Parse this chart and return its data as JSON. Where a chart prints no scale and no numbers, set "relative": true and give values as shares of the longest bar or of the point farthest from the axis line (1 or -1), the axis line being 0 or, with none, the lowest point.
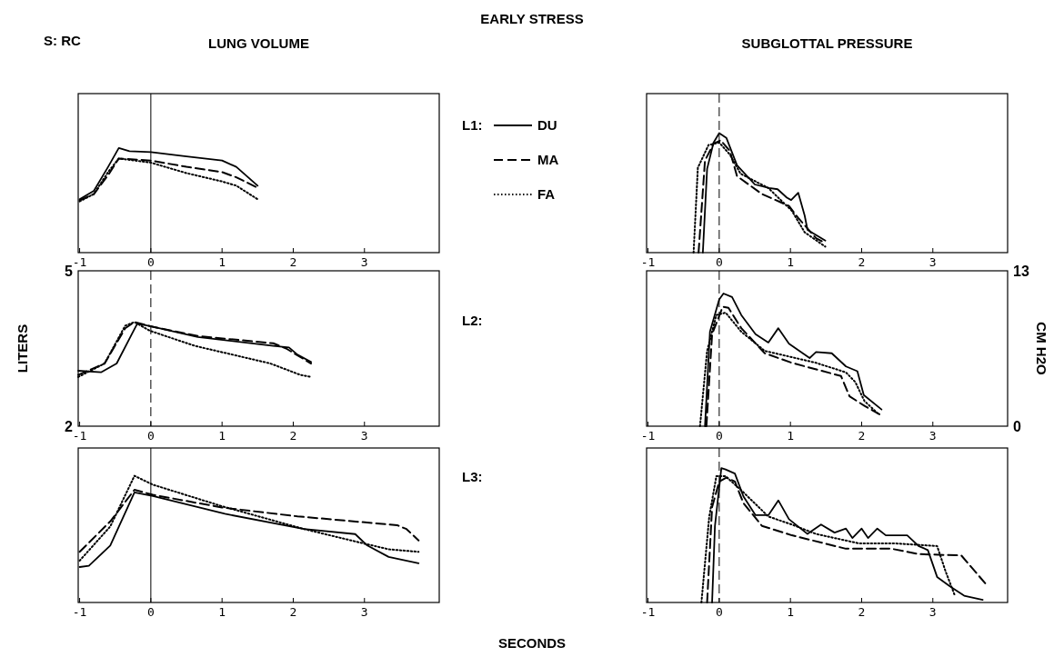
{
  "chart_data": [
    {
      "type": "other",
      "title": "EARLY STRESS",
      "xlabel": "SECONDS",
      "annotations": [
        "S: RC",
        "L1:",
        "L2:",
        "L3:"
      ]
    },
    {
      "type": "line",
      "title": "LUNG VOLUME",
      "relative": true,
      "legend": "right",
      "tick_labels": "x",
      "xlim": [
        -1.02,
        4.05
      ],
      "xticks": [
        -1,
        0,
        1,
        2,
        3
      ],
      "ref_lines": [
        {
          "axis": "x",
          "value": 0,
          "line_style": "solid"
        }
      ],
      "series": [
        {
          "name": "DU",
          "color": "#000000",
          "line_style": "solid",
          "x": [
            -1.0,
            -0.8,
            -0.6,
            -0.45,
            -0.3,
            0,
            0.5,
            1.0,
            1.2,
            1.5
          ],
          "values": [
            0.51,
            0.59,
            0.82,
            1,
            0.97,
            0.96,
            0.92,
            0.88,
            0.82,
            0.64
          ]
        },
        {
          "name": "MA",
          "color": "#000000",
          "line_style": "dashed",
          "x": [
            -1.0,
            -0.8,
            -0.6,
            -0.45,
            0,
            0.5,
            1.0,
            1.2,
            1.5
          ],
          "values": [
            0.5,
            0.56,
            0.74,
            0.9,
            0.88,
            0.82,
            0.77,
            0.72,
            0.62
          ]
        },
        {
          "name": "FA",
          "color": "#000000",
          "line_style": "dotted",
          "x": [
            -1.0,
            -0.8,
            -0.6,
            -0.45,
            0,
            0.5,
            1.0,
            1.2,
            1.5
          ],
          "values": [
            0.49,
            0.56,
            0.77,
            0.9,
            0.86,
            0.76,
            0.68,
            0.64,
            0.51
          ]
        }
      ]
    },
    {
      "type": "line",
      "title": "SUBGLOTTAL PRESSURE",
      "relative": true,
      "tick_labels": "x",
      "xlim": [
        -1.02,
        4.05
      ],
      "xticks": [
        -1,
        0,
        1,
        2,
        3
      ],
      "ref_lines": [
        {
          "axis": "x",
          "value": 0,
          "line_style": "dashed"
        }
      ],
      "series": [
        {
          "color": "#000000",
          "line_style": "solid",
          "x": [
            -0.23,
            -0.17,
            -0.08,
            0,
            0.1,
            0.25,
            0.5,
            0.7,
            0.82,
            0.95,
            1.01,
            1.11,
            1.2,
            1.24,
            1.49
          ],
          "values": [
            0,
            0.7,
            0.92,
            1,
            0.96,
            0.73,
            0.57,
            0.54,
            0.53,
            0.46,
            0.44,
            0.5,
            0.31,
            0.19,
            0.1
          ]
        },
        {
          "color": "#000000",
          "line_style": "dashed",
          "x": [
            -0.29,
            -0.2,
            -0.08,
            0.02,
            0.15,
            0.25,
            0.6,
            0.98,
            1.11,
            1.36,
            1.49
          ],
          "values": [
            0,
            0.77,
            0.91,
            0.94,
            0.85,
            0.64,
            0.49,
            0.39,
            0.29,
            0.12,
            0.08
          ]
        },
        {
          "color": "#000000",
          "line_style": "dotted",
          "x": [
            -0.36,
            -0.3,
            -0.15,
            0,
            0.15,
            0.3,
            0.69,
            1.02,
            1.2,
            1.49
          ],
          "values": [
            0,
            0.71,
            0.9,
            0.92,
            0.82,
            0.66,
            0.54,
            0.35,
            0.17,
            0.05
          ]
        }
      ]
    },
    {
      "type": "line",
      "ylabel": "LITERS",
      "xlim": [
        -1.02,
        4.05
      ],
      "xticks": [
        -1,
        0,
        1,
        2,
        3
      ],
      "ylim": [
        2,
        5
      ],
      "yticks": [
        2,
        5
      ],
      "ref_lines": [
        {
          "axis": "x",
          "value": 0,
          "line_style": "dashed"
        }
      ],
      "series": [
        {
          "color": "#000000",
          "line_style": "solid",
          "x": [
            -1.02,
            -0.7,
            -0.48,
            -0.27,
            -0.19,
            -0.01,
            0.66,
            1.72,
            1.94,
            2.06,
            2.25
          ],
          "values": [
            3.07,
            3.04,
            3.21,
            3.77,
            3.98,
            3.93,
            3.72,
            3.55,
            3.52,
            3.38,
            3.24
          ]
        },
        {
          "color": "#000000",
          "line_style": "dashed",
          "x": [
            -1.02,
            -0.65,
            -0.36,
            -0.23,
            -0.01,
            0.66,
            1.72,
            1.9,
            2.25
          ],
          "values": [
            2.99,
            3.21,
            3.89,
            4.01,
            3.93,
            3.74,
            3.6,
            3.5,
            3.21
          ]
        },
        {
          "color": "#000000",
          "line_style": "dotted",
          "x": [
            -1.02,
            -0.65,
            -0.36,
            -0.23,
            -0.01,
            0.62,
            1.68,
            2.1,
            2.25
          ],
          "values": [
            2.95,
            3.21,
            3.94,
            4.01,
            3.84,
            3.55,
            3.21,
            2.99,
            2.95
          ]
        }
      ]
    },
    {
      "type": "line",
      "ylabel": "CM H2O",
      "xlim": [
        -1.02,
        4.05
      ],
      "xticks": [
        -1,
        0,
        1,
        2,
        3
      ],
      "ylim": [
        0,
        13
      ],
      "yticks": [
        0,
        13
      ],
      "ref_lines": [
        {
          "axis": "x",
          "value": 0,
          "line_style": "dashed"
        }
      ],
      "series": [
        {
          "color": "#000000",
          "line_style": "solid",
          "x": [
            -0.2,
            -0.13,
            0,
            0.06,
            0.18,
            0.31,
            0.51,
            0.69,
            0.83,
            0.98,
            1.27,
            1.36,
            1.58,
            1.78,
            1.94,
            2.03,
            2.28
          ],
          "values": [
            0,
            7.9,
            10.6,
            11.1,
            10.8,
            9.3,
            7.7,
            7.0,
            8.2,
            6.9,
            5.7,
            6.2,
            6.1,
            5.0,
            4.6,
            2.6,
            1.4
          ]
        },
        {
          "color": "#000000",
          "line_style": "dashed",
          "x": [
            -0.18,
            -0.1,
            0.05,
            0.13,
            0.31,
            0.64,
            1.02,
            1.71,
            1.83,
            2.04,
            2.25
          ],
          "values": [
            0,
            7.7,
            10.0,
            9.9,
            8.2,
            6.1,
            5.3,
            4.2,
            2.5,
            1.7,
            1.0
          ]
        },
        {
          "color": "#000000",
          "line_style": "dotted",
          "x": [
            -0.27,
            -0.17,
            -0.04,
            0.09,
            0.31,
            0.64,
            1.36,
            1.78,
            1.91,
            2.04,
            2.22
          ],
          "values": [
            0,
            6.3,
            9.3,
            9.5,
            7.9,
            6.3,
            5.3,
            4.5,
            3.7,
            2.1,
            1.1
          ]
        }
      ]
    },
    {
      "type": "line",
      "relative": true,
      "tick_labels": "x",
      "xlim": [
        -1.02,
        4.05
      ],
      "xticks": [
        -1,
        0,
        1,
        2,
        3
      ],
      "ref_lines": [
        {
          "axis": "x",
          "value": 0,
          "line_style": "solid"
        }
      ],
      "series": [
        {
          "color": "#000000",
          "line_style": "solid",
          "x": [
            -1.0,
            -0.87,
            -0.57,
            -0.23,
            0.03,
            1.04,
            2.15,
            2.87,
            3.04,
            3.34,
            3.76
          ],
          "values": [
            0.28,
            0.29,
            0.45,
            0.87,
            0.84,
            0.7,
            0.58,
            0.54,
            0.45,
            0.36,
            0.31
          ]
        },
        {
          "color": "#000000",
          "line_style": "dashed",
          "x": [
            -1.0,
            -0.57,
            -0.23,
            0.03,
            1.0,
            2.06,
            3.46,
            3.59,
            3.76
          ],
          "values": [
            0.4,
            0.64,
            0.89,
            0.85,
            0.75,
            0.68,
            0.61,
            0.58,
            0.49
          ]
        },
        {
          "color": "#000000",
          "line_style": "dotted",
          "x": [
            -1.0,
            -0.57,
            -0.23,
            0.03,
            1.0,
            2.15,
            2.96,
            3.34,
            3.76
          ],
          "values": [
            0.33,
            0.6,
            1,
            0.93,
            0.76,
            0.58,
            0.47,
            0.42,
            0.4
          ]
        }
      ]
    },
    {
      "type": "line",
      "relative": true,
      "tick_labels": "x",
      "xlim": [
        -1.02,
        4.05
      ],
      "xticks": [
        -1,
        0,
        1,
        2,
        3
      ],
      "ref_lines": [
        {
          "axis": "x",
          "value": 0,
          "line_style": "dashed"
        }
      ],
      "series": [
        {
          "color": "#000000",
          "line_style": "solid",
          "x": [
            -0.1,
            -0.06,
            0.03,
            0.09,
            0.22,
            0.34,
            0.51,
            0.69,
            0.83,
            0.98,
            1.24,
            1.43,
            1.62,
            1.78,
            1.87,
            2.0,
            2.09,
            2.22,
            2.34,
            2.64,
            2.8,
            2.93,
            3.06,
            3.24,
            3.44,
            3.7
          ],
          "values": [
            0,
            0.57,
            1,
            0.99,
            0.96,
            0.79,
            0.65,
            0.65,
            0.76,
            0.62,
            0.51,
            0.58,
            0.52,
            0.55,
            0.48,
            0.55,
            0.48,
            0.55,
            0.5,
            0.5,
            0.42,
            0.39,
            0.19,
            0.12,
            0.05,
            0.02
          ]
        },
        {
          "color": "#000000",
          "line_style": "dashed",
          "x": [
            -0.17,
            -0.1,
            0,
            0.1,
            0.22,
            0.34,
            0.6,
            1.02,
            1.78,
            2.42,
            2.8,
            3.4,
            3.74
          ],
          "values": [
            0,
            0.71,
            0.9,
            0.93,
            0.9,
            0.74,
            0.57,
            0.5,
            0.4,
            0.4,
            0.36,
            0.35,
            0.14
          ]
        },
        {
          "color": "#000000",
          "line_style": "dotted",
          "x": [
            -0.25,
            -0.14,
            -0.04,
            0.09,
            0.34,
            0.69,
            1.02,
            1.36,
            1.96,
            2.47,
            3.06,
            3.18,
            3.31
          ],
          "values": [
            0,
            0.64,
            0.94,
            0.94,
            0.82,
            0.64,
            0.58,
            0.51,
            0.44,
            0.44,
            0.42,
            0.23,
            0.05
          ]
        }
      ]
    }
  ]
}
